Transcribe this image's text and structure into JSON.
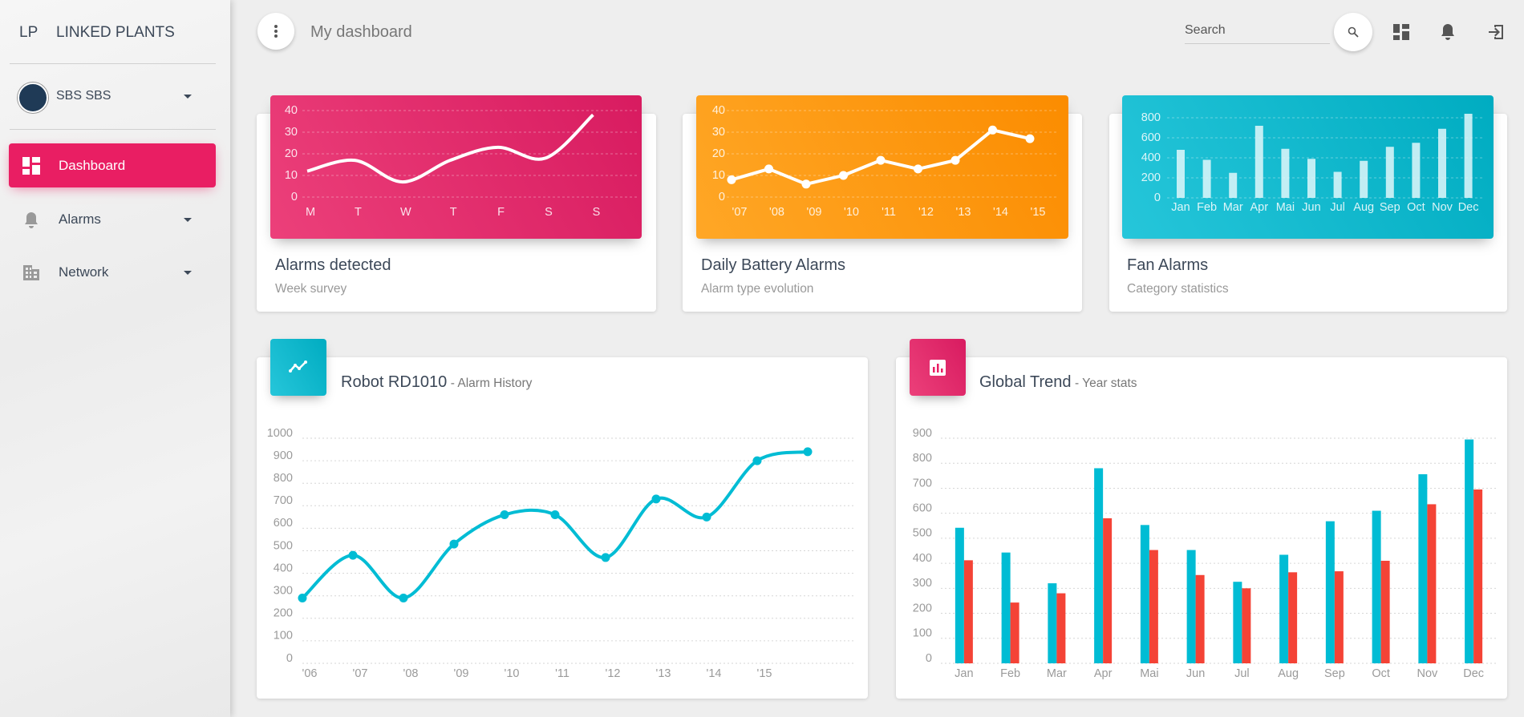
{
  "sidebar": {
    "logo": "LP",
    "brand": "LINKED PLANTS",
    "user": "SBS SBS",
    "menu": [
      "Dashboard",
      "Alarms",
      "Network"
    ]
  },
  "header": {
    "title": "My dashboard",
    "search": "Search"
  },
  "chart_data": [
    {
      "type": "line",
      "title": "Alarms detected",
      "subtitle": "Week survey",
      "color": "#ffffff",
      "smooth": true,
      "markers": false,
      "categories": [
        "M",
        "T",
        "W",
        "T",
        "F",
        "S",
        "S"
      ],
      "values": [
        12,
        17,
        7,
        17,
        23,
        18,
        38
      ],
      "ylim": [
        0,
        40
      ],
      "yticks": [
        0,
        10,
        20,
        30,
        40
      ],
      "grid": true
    },
    {
      "type": "line",
      "title": "Daily Battery Alarms",
      "subtitle": "Alarm type evolution",
      "color": "#ffffff",
      "smooth": false,
      "markers": true,
      "categories": [
        "'07",
        "'08",
        "'09",
        "'10",
        "'11",
        "'12",
        "'13",
        "'14",
        "'15"
      ],
      "values": [
        8,
        13,
        6,
        10,
        17,
        13,
        17,
        31,
        27
      ],
      "ylim": [
        0,
        40
      ],
      "yticks": [
        0,
        10,
        20,
        30,
        40
      ],
      "grid": true
    },
    {
      "type": "bar",
      "title": "Fan Alarms",
      "subtitle": "Category statistics",
      "color": "#e0f7fa",
      "categories": [
        "Jan",
        "Feb",
        "Mar",
        "Apr",
        "Mai",
        "Jun",
        "Jul",
        "Aug",
        "Sep",
        "Oct",
        "Nov",
        "Dec"
      ],
      "values": [
        480,
        380,
        250,
        720,
        490,
        390,
        260,
        370,
        510,
        550,
        690,
        840
      ],
      "ylim": [
        0,
        900
      ],
      "yticks": [
        0,
        200,
        400,
        600,
        800
      ],
      "grid": true
    },
    {
      "type": "line",
      "title": "Robot RD1010",
      "subtitle": "- Alarm History",
      "color": "#00bcd4",
      "smooth": true,
      "markers": true,
      "categories": [
        "'06",
        "'07",
        "'08",
        "'09",
        "'10",
        "'11",
        "'12",
        "'13",
        "'14",
        "'15",
        null
      ],
      "values": [
        290,
        480,
        290,
        530,
        660,
        660,
        470,
        730,
        650,
        900,
        940
      ],
      "ylim": [
        0,
        1000
      ],
      "yticks": [
        0,
        100,
        200,
        300,
        400,
        500,
        600,
        700,
        800,
        900,
        1000
      ],
      "grid": true
    },
    {
      "type": "grouped_bar",
      "title": "Global Trend",
      "subtitle": "- Year stats",
      "categories": [
        "Jan",
        "Feb",
        "Mar",
        "Apr",
        "Mai",
        "Jun",
        "Jul",
        "Aug",
        "Sep",
        "Oct",
        "Nov",
        "Dec"
      ],
      "series": [
        {
          "color": "#00bcd4",
          "values": [
            542,
            443,
            320,
            780,
            553,
            453,
            326,
            434,
            568,
            610,
            756,
            895
          ]
        },
        {
          "color": "#f44336",
          "values": [
            412,
            243,
            280,
            580,
            453,
            353,
            300,
            364,
            368,
            410,
            636,
            695
          ]
        }
      ],
      "ylim": [
        0,
        900
      ],
      "yticks": [
        0,
        100,
        200,
        300,
        400,
        500,
        600,
        700,
        800,
        900
      ],
      "grid": true
    }
  ]
}
